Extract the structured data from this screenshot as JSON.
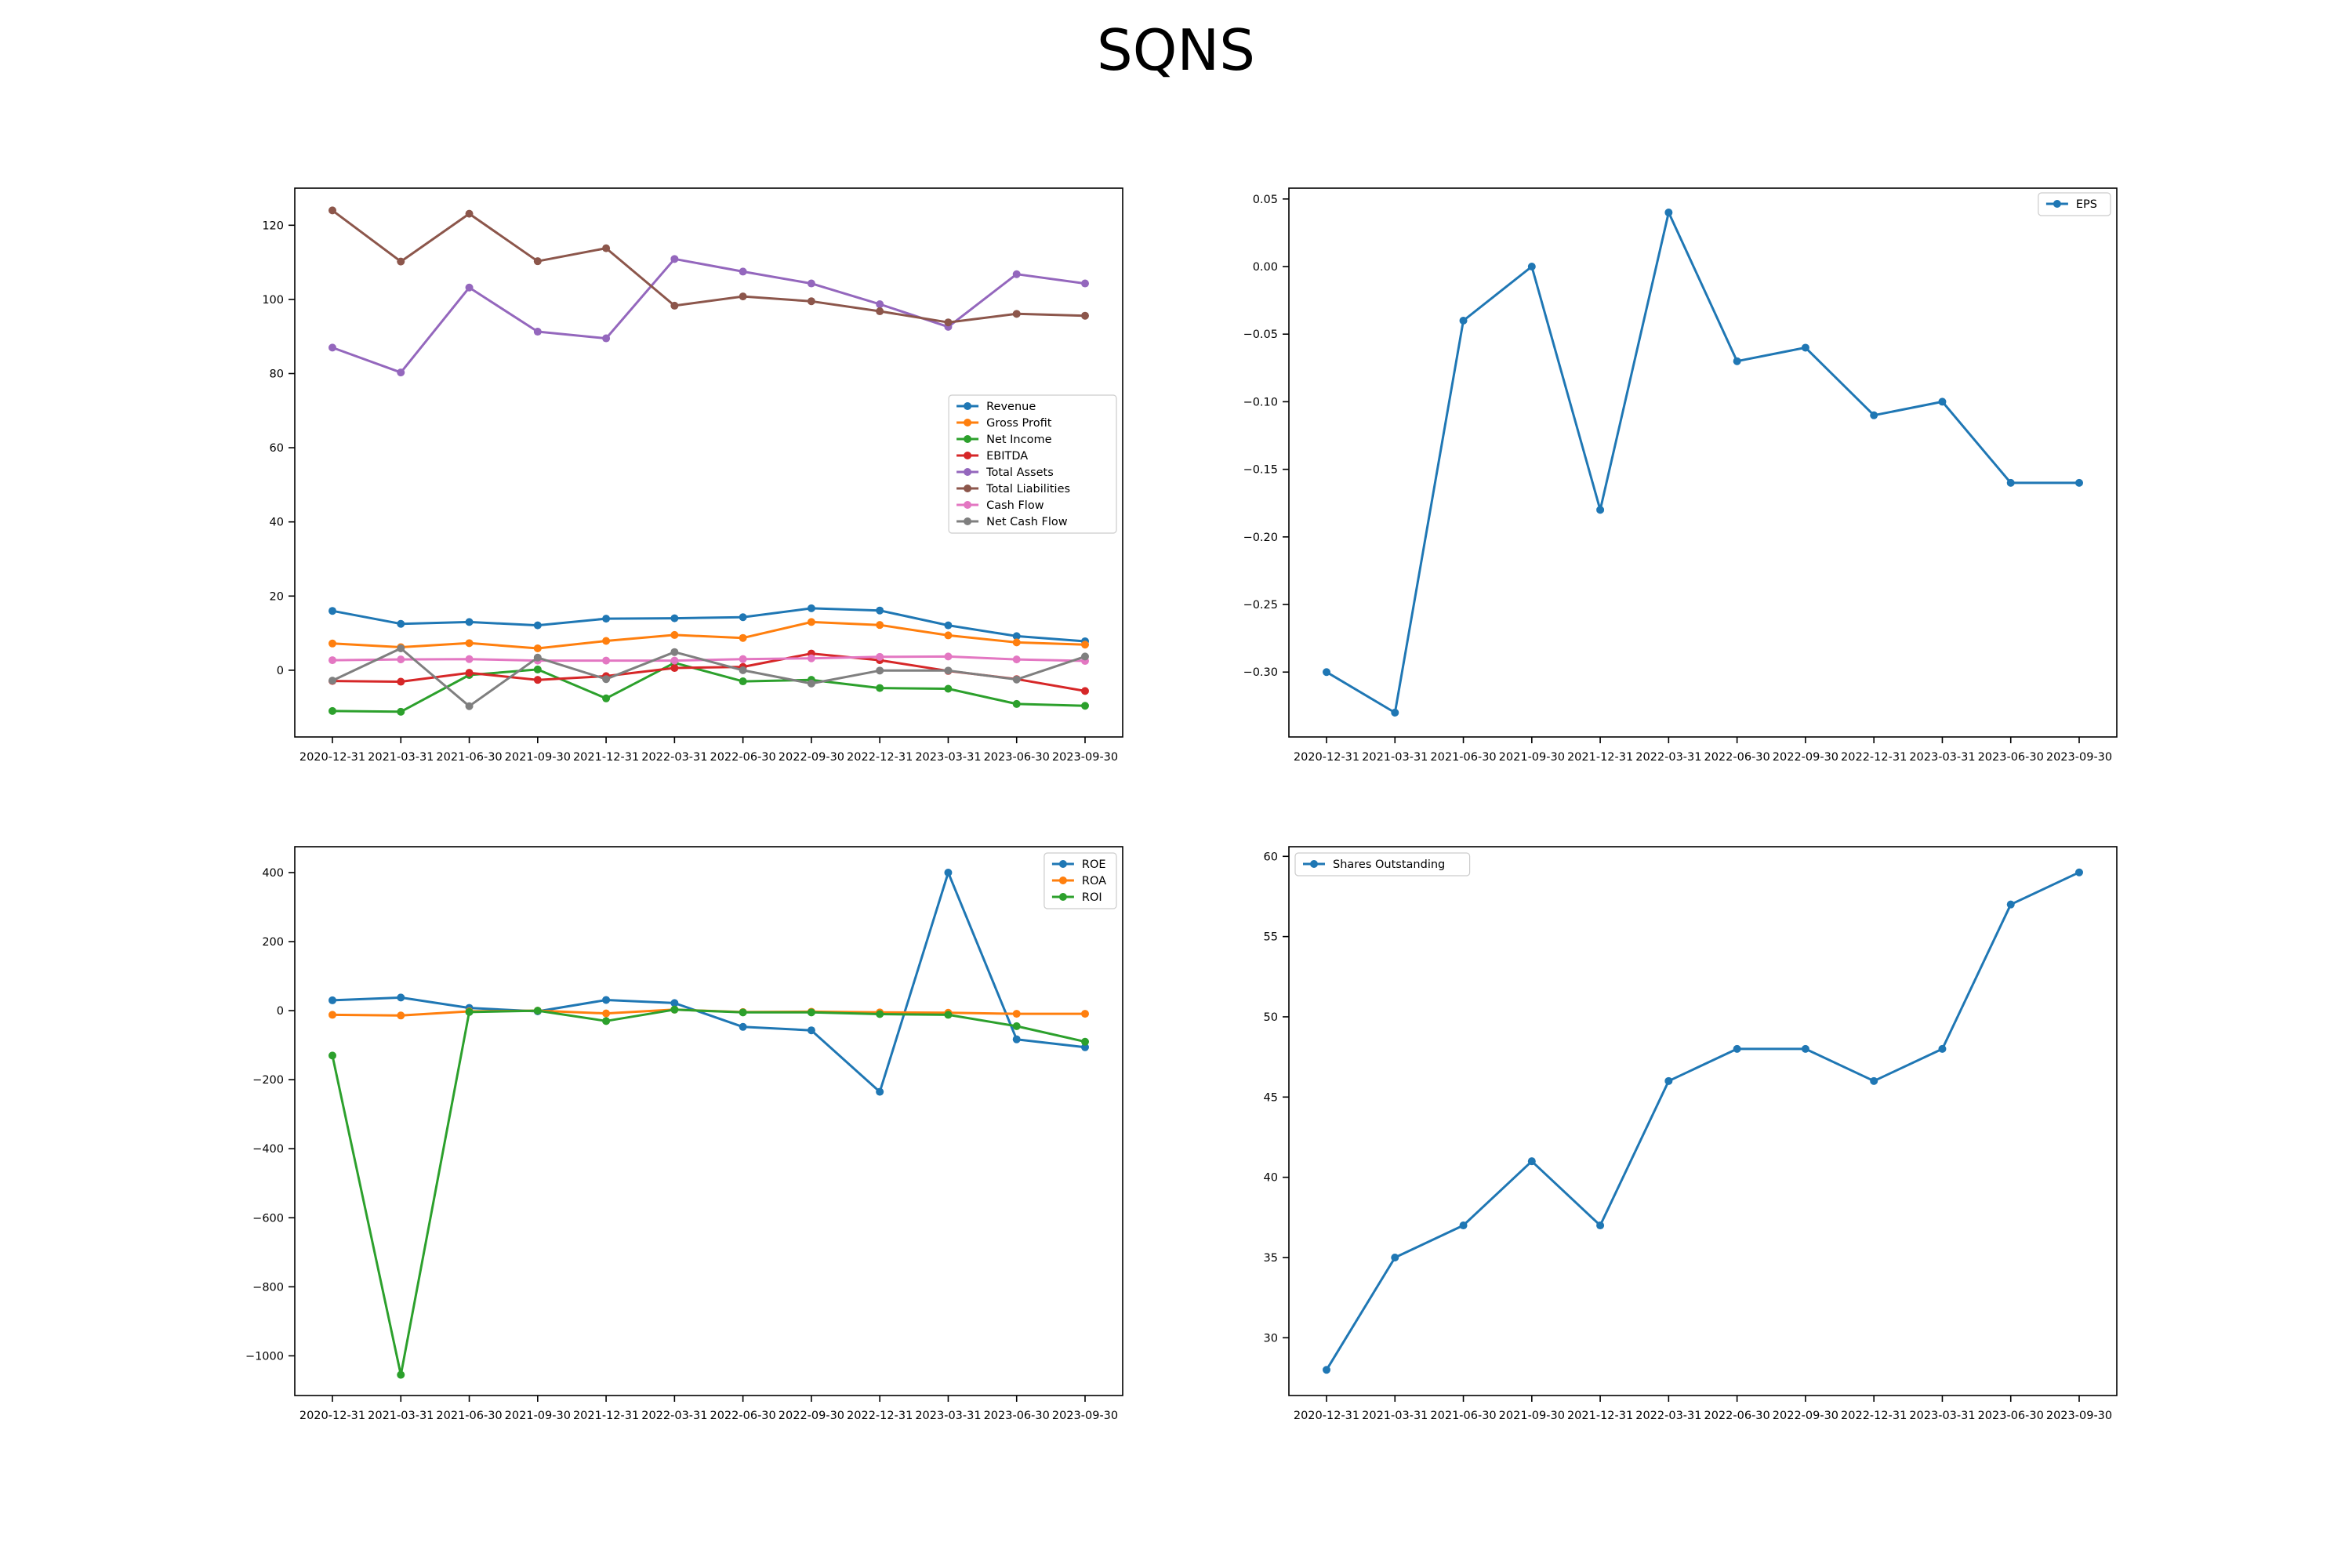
{
  "page": {
    "title": "SQNS"
  },
  "colors": {
    "blue": "#1f77b4",
    "orange": "#ff7f0e",
    "green": "#2ca02c",
    "red": "#d62728",
    "purple": "#9467bd",
    "brown": "#8c564b",
    "pink": "#e377c2",
    "gray": "#7f7f7f"
  },
  "chart_data": [
    {
      "id": "financials",
      "type": "line",
      "title": "",
      "xlabel": "",
      "ylabel": "",
      "categories": [
        "2020-12-31",
        "2021-03-31",
        "2021-06-30",
        "2021-09-30",
        "2021-12-31",
        "2022-03-31",
        "2022-06-30",
        "2022-09-30",
        "2022-12-31",
        "2023-03-31",
        "2023-06-30",
        "2023-09-30"
      ],
      "ylim": [
        -18,
        130
      ],
      "yticks": [
        0,
        20,
        40,
        60,
        80,
        100,
        120
      ],
      "ytick_labels": [
        "0",
        "20",
        "40",
        "60",
        "80",
        "100",
        "120"
      ],
      "grid": false,
      "legend": "center-right",
      "series": [
        {
          "name": "Revenue",
          "color": "#1f77b4",
          "values": [
            16.0,
            12.5,
            13.0,
            12.1,
            13.9,
            14.0,
            14.3,
            16.7,
            16.1,
            12.1,
            9.2,
            7.8
          ]
        },
        {
          "name": "Gross Profit",
          "color": "#ff7f0e",
          "values": [
            7.2,
            6.2,
            7.3,
            5.9,
            7.9,
            9.5,
            8.7,
            13.0,
            12.2,
            9.4,
            7.5,
            6.9
          ]
        },
        {
          "name": "Net Income",
          "color": "#2ca02c",
          "values": [
            -11.0,
            -11.2,
            -1.3,
            0.2,
            -7.6,
            2.0,
            -3.0,
            -2.6,
            -4.8,
            -5.0,
            -9.1,
            -9.6
          ]
        },
        {
          "name": "EBITDA",
          "color": "#d62728",
          "values": [
            -2.9,
            -3.1,
            -0.7,
            -2.6,
            -1.6,
            0.6,
            0.9,
            4.5,
            2.7,
            -0.2,
            -2.4,
            -5.6
          ]
        },
        {
          "name": "Total Assets",
          "color": "#9467bd",
          "values": [
            87.0,
            80.3,
            103.2,
            91.3,
            89.5,
            110.9,
            107.5,
            104.3,
            98.7,
            92.6,
            106.8,
            104.3
          ]
        },
        {
          "name": "Total Liabilities",
          "color": "#8c564b",
          "values": [
            124.0,
            110.2,
            123.1,
            110.3,
            113.8,
            98.3,
            100.8,
            99.5,
            96.8,
            93.8,
            96.1,
            95.6
          ]
        },
        {
          "name": "Cash Flow",
          "color": "#e377c2",
          "values": [
            2.7,
            2.9,
            3.0,
            2.6,
            2.6,
            2.6,
            3.0,
            3.2,
            3.6,
            3.7,
            2.9,
            2.5
          ]
        },
        {
          "name": "Net Cash Flow",
          "color": "#7f7f7f",
          "values": [
            -2.8,
            5.9,
            -9.7,
            3.4,
            -2.4,
            4.9,
            0.0,
            -3.6,
            -0.1,
            -0.1,
            -2.5,
            3.7
          ]
        }
      ]
    },
    {
      "id": "eps",
      "type": "line",
      "title": "",
      "xlabel": "",
      "ylabel": "",
      "categories": [
        "2020-12-31",
        "2021-03-31",
        "2021-06-30",
        "2021-09-30",
        "2021-12-31",
        "2022-03-31",
        "2022-06-30",
        "2022-09-30",
        "2022-12-31",
        "2023-03-31",
        "2023-06-30",
        "2023-09-30"
      ],
      "ylim": [
        -0.348,
        0.058
      ],
      "yticks": [
        0.05,
        0.0,
        -0.05,
        -0.1,
        -0.15,
        -0.2,
        -0.25,
        -0.3
      ],
      "ytick_labels": [
        "0.05",
        "0.00",
        "−0.05",
        "−0.10",
        "−0.15",
        "−0.20",
        "−0.25",
        "−0.30"
      ],
      "grid": false,
      "legend": "top-right",
      "series": [
        {
          "name": "EPS",
          "color": "#1f77b4",
          "values": [
            -0.3,
            -0.33,
            -0.04,
            0.0,
            -0.18,
            0.04,
            -0.07,
            -0.06,
            -0.11,
            -0.1,
            -0.16,
            -0.16
          ]
        }
      ]
    },
    {
      "id": "ratios",
      "type": "line",
      "title": "",
      "xlabel": "",
      "ylabel": "",
      "categories": [
        "2020-12-31",
        "2021-03-31",
        "2021-06-30",
        "2021-09-30",
        "2021-12-31",
        "2022-03-31",
        "2022-06-30",
        "2022-09-30",
        "2022-12-31",
        "2023-03-31",
        "2023-06-30",
        "2023-09-30"
      ],
      "ylim": [
        -1115,
        475
      ],
      "yticks": [
        400,
        200,
        0,
        -200,
        -400,
        -600,
        -800,
        -1000
      ],
      "ytick_labels": [
        "400",
        "200",
        "0",
        "−200",
        "−400",
        "−600",
        "−800",
        "−1000"
      ],
      "grid": false,
      "legend": "top-right",
      "series": [
        {
          "name": "ROE",
          "color": "#1f77b4",
          "values": [
            30,
            38,
            8,
            -2,
            31,
            22,
            -47,
            -57,
            -235,
            400,
            -83,
            -106
          ]
        },
        {
          "name": "ROA",
          "color": "#ff7f0e",
          "values": [
            -12,
            -14,
            -2,
            0,
            -8,
            3,
            -4,
            -3,
            -5,
            -6,
            -9,
            -9
          ]
        },
        {
          "name": "ROI",
          "color": "#2ca02c",
          "values": [
            -130,
            -1055,
            -4,
            0,
            -30,
            3,
            -5,
            -5,
            -10,
            -12,
            -45,
            -90
          ]
        }
      ]
    },
    {
      "id": "shares",
      "type": "line",
      "title": "",
      "xlabel": "",
      "ylabel": "",
      "categories": [
        "2020-12-31",
        "2021-03-31",
        "2021-06-30",
        "2021-09-30",
        "2021-12-31",
        "2022-03-31",
        "2022-06-30",
        "2022-09-30",
        "2022-12-31",
        "2023-03-31",
        "2023-06-30",
        "2023-09-30"
      ],
      "ylim": [
        26.4,
        60.6
      ],
      "yticks": [
        60,
        55,
        50,
        45,
        40,
        35,
        30
      ],
      "ytick_labels": [
        "60",
        "55",
        "50",
        "45",
        "40",
        "35",
        "30"
      ],
      "grid": false,
      "legend": "top-left",
      "series": [
        {
          "name": "Shares Outstanding",
          "color": "#1f77b4",
          "values": [
            28,
            35,
            37,
            41,
            37,
            46,
            48,
            48,
            46,
            48,
            57,
            59
          ]
        }
      ]
    }
  ]
}
